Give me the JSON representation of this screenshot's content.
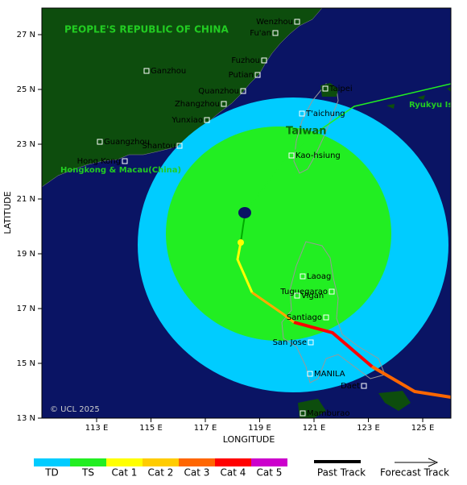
{
  "map": {
    "region_labels": [
      "PEOPLE'S REPUBLIC OF CHINA",
      "Taiwan",
      "Hongkong & Macau(China)",
      "Ryukyu Is"
    ],
    "cities": [
      "Wenzhou",
      "Fu'an",
      "Fuzhou",
      "Putian",
      "Quanzhou",
      "Zhangzhou",
      "Yunxiao",
      "Ganzhou",
      "Guangzhou",
      "Shantou",
      "Hong Kong",
      "Taipei",
      "T'aichung",
      "Kao-hsiung",
      "Laoag",
      "Tuguegarao",
      "Vigan",
      "Santiago",
      "San Jose",
      "MANILA",
      "Daet",
      "Mamburao"
    ],
    "copyright": "© UCL 2025",
    "x_label": "LONGITUDE",
    "y_label": "LATITUDE",
    "x_ticks": [
      {
        "value": 113,
        "label": "113 E"
      },
      {
        "value": 115,
        "label": "115 E"
      },
      {
        "value": 117,
        "label": "117 E"
      },
      {
        "value": 119,
        "label": "119 E"
      },
      {
        "value": 121,
        "label": "121 E"
      },
      {
        "value": 123,
        "label": "123 E"
      },
      {
        "value": 125,
        "label": "125 E"
      }
    ],
    "y_ticks": [
      {
        "value": 13,
        "label": "13 N"
      },
      {
        "value": 15,
        "label": "15 N"
      },
      {
        "value": 17,
        "label": "17 N"
      },
      {
        "value": 19,
        "label": "19 N"
      },
      {
        "value": 21,
        "label": "21 N"
      },
      {
        "value": 23,
        "label": "23 N"
      },
      {
        "value": 25,
        "label": "25 N"
      },
      {
        "value": 27,
        "label": "27 N"
      }
    ]
  },
  "legend": {
    "categories": [
      {
        "label": "TD",
        "color": "#00ccff"
      },
      {
        "label": "TS",
        "color": "#22ee22"
      },
      {
        "label": "Cat 1",
        "color": "#ffff00"
      },
      {
        "label": "Cat 2",
        "color": "#ffcc00"
      },
      {
        "label": "Cat 3",
        "color": "#ff6600"
      },
      {
        "label": "Cat 4",
        "color": "#ff0000"
      },
      {
        "label": "Cat 5",
        "color": "#cc00cc"
      }
    ],
    "past_track": "Past Track",
    "forecast_track": "Forecast Track"
  }
}
